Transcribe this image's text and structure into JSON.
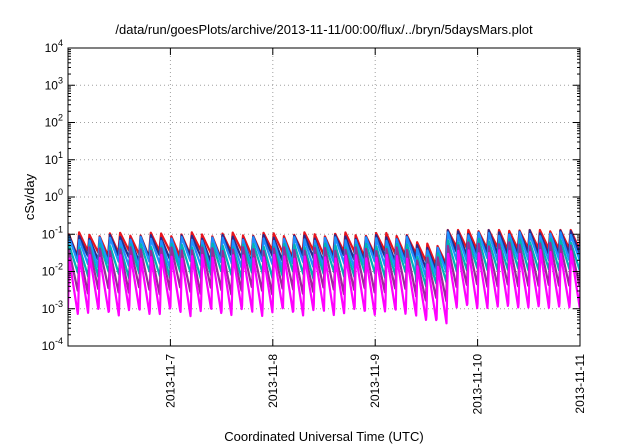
{
  "chart_data": {
    "type": "line",
    "title": "/data/run/goesPlots/archive/2013-11-11/00:00/flux/../bryn/5daysMars.plot",
    "xlabel": "Coordinated Universal Time (UTC)",
    "ylabel": "cSv/day",
    "x_axis_type": "date",
    "xlim": [
      "2013-11-06T00:00",
      "2013-11-11T00:00"
    ],
    "x_ticks": [
      "2013-11-7",
      "2013-11-8",
      "2013-11-9",
      "2013-11-10",
      "2013-11-11"
    ],
    "y_scale": "log",
    "ylim": [
      0.0001,
      10000
    ],
    "y_ticks": [
      {
        "base": "10",
        "exp": "-4"
      },
      {
        "base": "10",
        "exp": "-3"
      },
      {
        "base": "10",
        "exp": "-2"
      },
      {
        "base": "10",
        "exp": "-1"
      },
      {
        "base": "10",
        "exp": "0"
      },
      {
        "base": "10",
        "exp": "1"
      },
      {
        "base": "10",
        "exp": "2"
      },
      {
        "base": "10",
        "exp": "3"
      },
      {
        "base": "10",
        "exp": "4"
      }
    ],
    "grid": true,
    "legend": "none",
    "pattern": "sawtooth orbital dose cycles, about 10 per day",
    "series": [
      {
        "color": "#e8141e",
        "peak": 0.1,
        "trough": 0.03
      },
      {
        "color": "#2a2a8a",
        "peak": 0.085,
        "trough": 0.022
      },
      {
        "color": "#1e90ff",
        "peak": 0.075,
        "trough": 0.015
      },
      {
        "color": "#00b4b4",
        "peak": 0.05,
        "trough": 0.008
      },
      {
        "color": "#9a2a9a",
        "peak": 0.04,
        "trough": 0.003
      },
      {
        "color": "#ff00ff",
        "peak": 0.025,
        "trough": 0.0008
      }
    ]
  }
}
